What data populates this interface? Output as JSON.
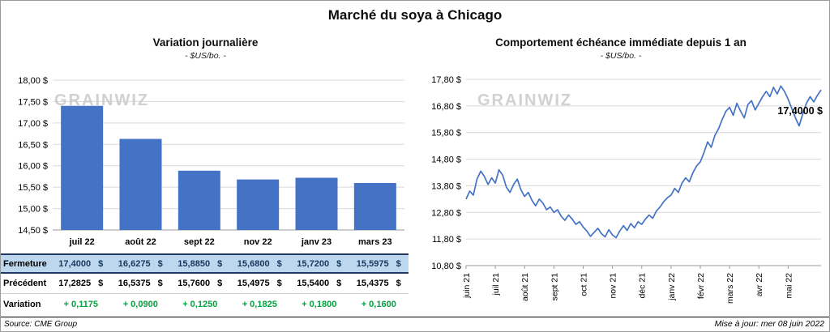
{
  "title": "Marché du soya à Chicago",
  "watermark": "GRAINWIZ",
  "footer": {
    "source": "Source: CME Group",
    "updated": "Mise à jour: mer 08 juin 2022"
  },
  "colors": {
    "accent_blue": "#4472C4",
    "highlight_row_bg": "#BDD7EE",
    "table_border_navy": "#203864",
    "positive_green": "#00A33D",
    "grid_gray": "#D9D9D9",
    "axis_gray": "#9a9a9a",
    "watermark_gray": "#C9C9C9"
  },
  "table": {
    "rows": [
      {
        "label": "Fermeture",
        "values": [
          "17,4000",
          "16,6275",
          "15,8850",
          "15,6800",
          "15,7200",
          "15,5975"
        ],
        "suffix": "$",
        "style": "highlight"
      },
      {
        "label": "Précédent",
        "values": [
          "17,2825",
          "16,5375",
          "15,7600",
          "15,4975",
          "15,5400",
          "15,4375"
        ],
        "suffix": "$",
        "style": "normal"
      },
      {
        "label": "Variation",
        "values": [
          "+ 0,1175",
          "+ 0,0900",
          "+ 0,1250",
          "+ 0,1825",
          "+ 0,1800",
          "+ 0,1600"
        ],
        "suffix": "",
        "style": "green"
      }
    ]
  },
  "chart_data": [
    {
      "type": "bar",
      "title": "Variation  journalière",
      "subtitle": "- $US/bo. -",
      "categories": [
        "juil 22",
        "août 22",
        "sept 22",
        "nov 22",
        "janv 23",
        "mars 23"
      ],
      "values": [
        17.4,
        16.6275,
        15.885,
        15.68,
        15.72,
        15.5975
      ],
      "ylim": [
        14.5,
        18.0
      ],
      "ytick_step": 0.5,
      "ylabel_format": "fr $US/bo.",
      "grid": true,
      "bar_color": "#4472C4"
    },
    {
      "type": "line",
      "title": "Comportement  échéance  immédiate  depuis 1 an",
      "subtitle": "- $US/bo. -",
      "x_labels": [
        "juin 21",
        "juil 21",
        "août 21",
        "sept 21",
        "oct 21",
        "nov 21",
        "déc 21",
        "janv 22",
        "févr 22",
        "mars 22",
        "avr 22",
        "mai 22"
      ],
      "points_per_month": 8,
      "values": [
        13.3,
        13.6,
        13.45,
        14.05,
        14.35,
        14.15,
        13.85,
        14.1,
        13.9,
        14.4,
        14.2,
        13.75,
        13.55,
        13.85,
        14.05,
        13.65,
        13.4,
        13.55,
        13.25,
        13.05,
        13.3,
        13.15,
        12.9,
        13.0,
        12.8,
        12.9,
        12.65,
        12.5,
        12.7,
        12.55,
        12.35,
        12.45,
        12.25,
        12.1,
        11.9,
        12.05,
        12.2,
        12.0,
        11.88,
        12.15,
        11.95,
        11.85,
        12.1,
        12.3,
        12.12,
        12.38,
        12.22,
        12.45,
        12.35,
        12.55,
        12.7,
        12.58,
        12.85,
        13.0,
        13.2,
        13.35,
        13.45,
        13.7,
        13.55,
        13.9,
        14.1,
        13.95,
        14.3,
        14.55,
        14.7,
        15.05,
        15.45,
        15.25,
        15.7,
        15.95,
        16.3,
        16.6,
        16.75,
        16.45,
        16.9,
        16.6,
        16.35,
        16.85,
        17.0,
        16.65,
        16.9,
        17.15,
        17.35,
        17.15,
        17.5,
        17.25,
        17.55,
        17.35,
        17.05,
        16.7,
        16.35,
        16.05,
        16.5,
        16.9,
        17.15,
        16.95,
        17.2,
        17.4
      ],
      "ylim": [
        10.8,
        17.8
      ],
      "ytick_step": 1.0,
      "grid": true,
      "line_color": "#4472C4",
      "annotation": {
        "text": "17,4000 $",
        "value": 17.4
      }
    }
  ]
}
